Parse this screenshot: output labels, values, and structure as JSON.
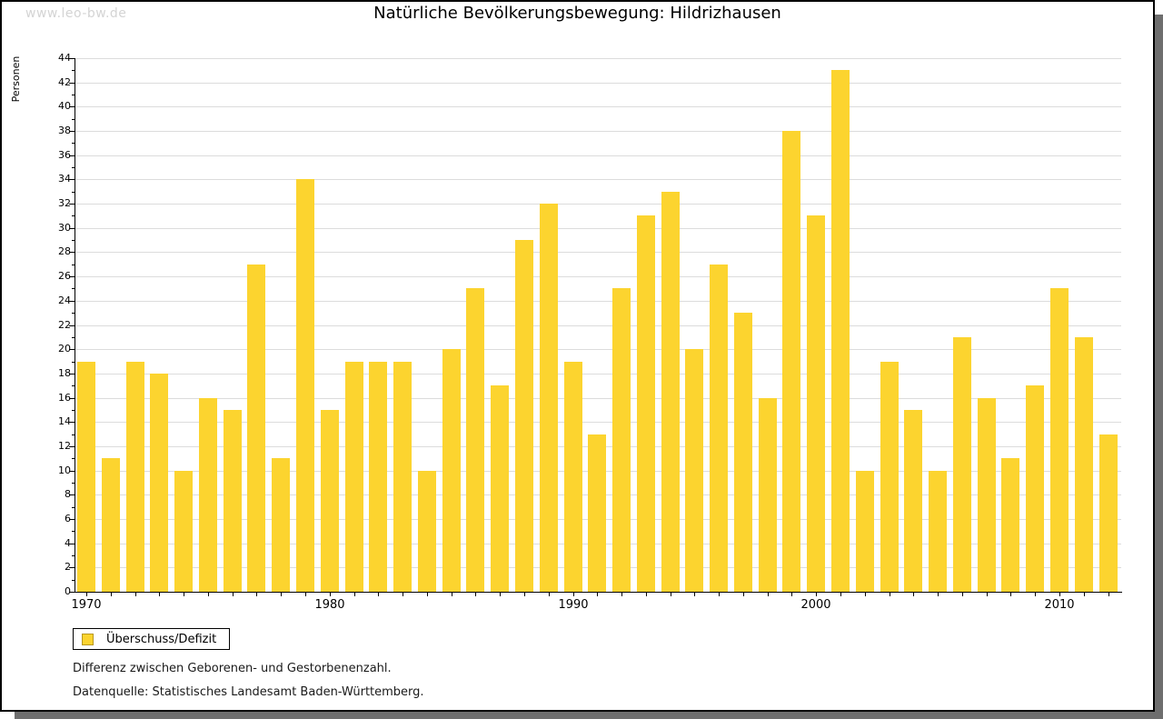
{
  "watermark": "www.leo-bw.de",
  "header": {
    "title": "Natürliche Bevölkerungsbewegung: Hildrizhausen"
  },
  "legend": {
    "label": "Überschuss/Defizit"
  },
  "footnotes": {
    "line1": "Differenz zwischen Geborenen- und Gestorbenenzahl.",
    "line2": "Datenquelle: Statistisches Landesamt Baden-Württemberg."
  },
  "colors": {
    "bar": "#fcd42f",
    "legend_swatch_border": "#b8971d",
    "gridline": "#dcdcdc",
    "watermark": "#d4d4d4",
    "page_shadow": "#6e6e6e"
  },
  "chart_data": {
    "type": "bar",
    "title": "Natürliche Bevölkerungsbewegung: Hildrizhausen",
    "xlabel": "",
    "ylabel": "Personen",
    "ylim": [
      0,
      44
    ],
    "ytick_step": 2,
    "grid": true,
    "legend_position": "bottom-left",
    "legend_entries": [
      "Überschuss/Defizit"
    ],
    "xtick_labels": [
      "1970",
      "1980",
      "1990",
      "2000",
      "2010"
    ],
    "xtick_label_every": 10,
    "categories": [
      1970,
      1971,
      1972,
      1973,
      1974,
      1975,
      1976,
      1977,
      1978,
      1979,
      1980,
      1981,
      1982,
      1983,
      1984,
      1985,
      1986,
      1987,
      1988,
      1989,
      1990,
      1991,
      1992,
      1993,
      1994,
      1995,
      1996,
      1997,
      1998,
      1999,
      2000,
      2001,
      2002,
      2003,
      2004,
      2005,
      2006,
      2007,
      2008,
      2009,
      2010,
      2011,
      2012
    ],
    "values": [
      19,
      11,
      19,
      18,
      10,
      16,
      15,
      27,
      11,
      34,
      15,
      19,
      19,
      19,
      10,
      20,
      25,
      17,
      29,
      32,
      19,
      13,
      25,
      31,
      33,
      20,
      27,
      23,
      16,
      38,
      31,
      43,
      10,
      19,
      15,
      10,
      21,
      16,
      11,
      17,
      25,
      21,
      13
    ]
  }
}
